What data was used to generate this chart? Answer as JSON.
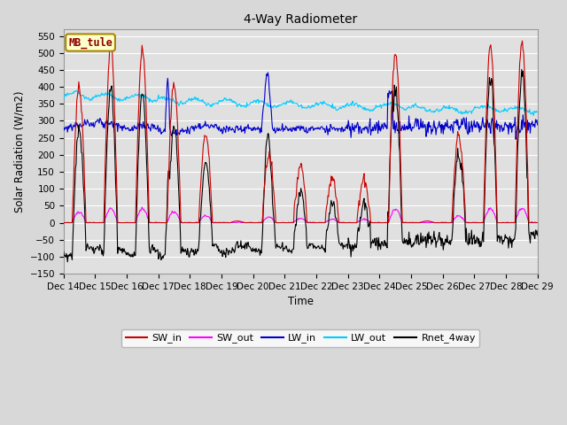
{
  "title": "4-Way Radiometer",
  "xlabel": "Time",
  "ylabel": "Solar Radiation (W/m2)",
  "ylim": [
    -150,
    570
  ],
  "yticks": [
    -150,
    -100,
    -50,
    0,
    50,
    100,
    150,
    200,
    250,
    300,
    350,
    400,
    450,
    500,
    550
  ],
  "xtick_labels": [
    "Dec 14",
    "Dec 15",
    "Dec 16",
    "Dec 17",
    "Dec 18",
    "Dec 19",
    "Dec 20",
    "Dec 21",
    "Dec 22",
    "Dec 23",
    "Dec 24",
    "Dec 25",
    "Dec 26",
    "Dec 27",
    "Dec 28",
    "Dec 29"
  ],
  "n_days": 15,
  "background_color": "#e0e0e0",
  "grid_color": "#ffffff",
  "legend_labels": [
    "SW_in",
    "SW_out",
    "LW_in",
    "LW_out",
    "Rnet_4way"
  ],
  "legend_colors": [
    "#cc0000",
    "#ff00ff",
    "#0000cc",
    "#00ccff",
    "#000000"
  ],
  "annotation_box_text": "MB_tule",
  "annotation_box_color": "#ffffcc",
  "annotation_box_edge": "#aa8800",
  "fig_facecolor": "#d8d8d8"
}
